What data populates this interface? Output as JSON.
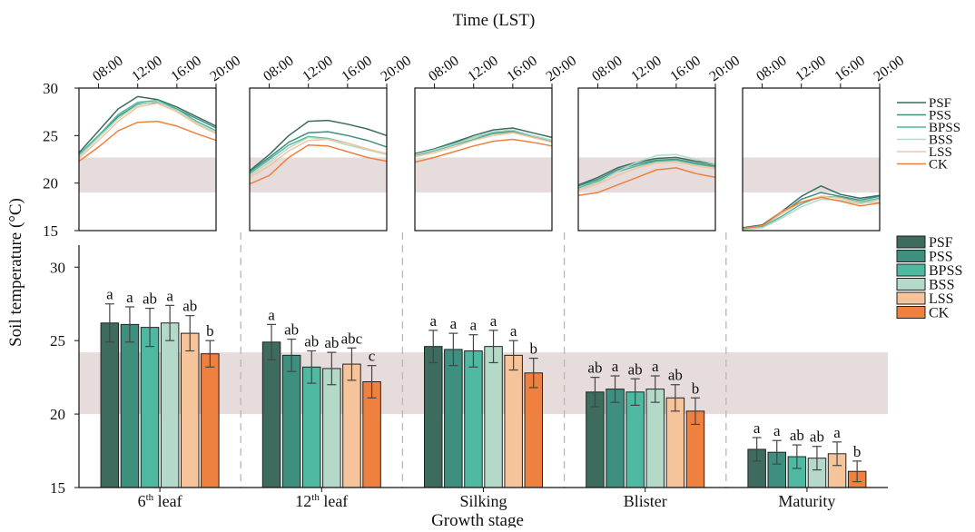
{
  "figure": {
    "top_xlabel": "Time (LST)",
    "ylabel": "Soil temperature (°C)",
    "bottom_xlabel": "Growth stage"
  },
  "colors": {
    "PSF": "#3d6b5e",
    "PSS": "#3f8f7f",
    "BPSS": "#4fb8a0",
    "BSS": "#b4d9c8",
    "LSS": "#f5c49a",
    "CK": "#ee8040",
    "band": "#e6dcdc"
  },
  "chart_data": [
    {
      "type": "line",
      "panel": "diurnal",
      "xlabel": "Time (LST)",
      "ylabel": "Soil temperature (°C)",
      "x_ticks": [
        "08:00",
        "12:00",
        "16:00",
        "20:00"
      ],
      "x_hours": [
        6,
        8,
        10,
        12,
        14,
        16,
        18,
        20
      ],
      "y_ticks": [
        15,
        20,
        25,
        30
      ],
      "ylim": [
        15,
        30
      ],
      "band": [
        19,
        22.7
      ],
      "legend": [
        "PSF",
        "PSS",
        "BPSS",
        "BSS",
        "LSS",
        "CK"
      ],
      "legend_position": "right",
      "facets": [
        {
          "stage": "6th leaf",
          "series": [
            {
              "name": "PSF",
              "values": [
                23.2,
                25.5,
                27.8,
                29.1,
                28.8,
                28.0,
                27.0,
                26.0
              ]
            },
            {
              "name": "PSS",
              "values": [
                23.0,
                25.0,
                27.0,
                28.3,
                28.5,
                27.8,
                26.8,
                25.8
              ]
            },
            {
              "name": "BPSS",
              "values": [
                23.0,
                25.0,
                27.2,
                28.5,
                28.7,
                27.8,
                26.5,
                25.5
              ]
            },
            {
              "name": "BSS",
              "values": [
                22.8,
                24.8,
                26.8,
                28.2,
                28.6,
                27.6,
                26.3,
                25.3
              ]
            },
            {
              "name": "LSS",
              "values": [
                22.6,
                24.5,
                26.5,
                28.0,
                28.4,
                27.5,
                26.2,
                25.2
              ]
            },
            {
              "name": "CK",
              "values": [
                22.3,
                23.8,
                25.5,
                26.4,
                26.5,
                26.0,
                25.2,
                24.5
              ]
            }
          ]
        },
        {
          "stage": "12th leaf",
          "series": [
            {
              "name": "PSF",
              "values": [
                21.3,
                23.0,
                25.0,
                26.5,
                26.6,
                26.2,
                25.7,
                25.0
              ]
            },
            {
              "name": "PSS",
              "values": [
                21.2,
                22.7,
                24.3,
                25.3,
                25.4,
                25.0,
                24.5,
                23.8
              ]
            },
            {
              "name": "BPSS",
              "values": [
                21.0,
                22.5,
                24.0,
                24.9,
                24.7,
                24.2,
                23.6,
                23.0
              ]
            },
            {
              "name": "BSS",
              "values": [
                20.8,
                22.2,
                23.7,
                24.8,
                24.6,
                24.0,
                23.5,
                23.0
              ]
            },
            {
              "name": "LSS",
              "values": [
                20.6,
                21.8,
                23.4,
                24.5,
                24.6,
                24.2,
                23.6,
                23.1
              ]
            },
            {
              "name": "CK",
              "values": [
                19.9,
                20.8,
                22.7,
                24.0,
                23.9,
                23.3,
                22.7,
                22.3
              ]
            }
          ]
        },
        {
          "stage": "Silking",
          "series": [
            {
              "name": "PSF",
              "values": [
                23.1,
                23.6,
                24.3,
                25.0,
                25.6,
                25.8,
                25.3,
                24.8
              ]
            },
            {
              "name": "PSS",
              "values": [
                23.0,
                23.5,
                24.2,
                24.8,
                25.3,
                25.5,
                25.0,
                24.5
              ]
            },
            {
              "name": "BPSS",
              "values": [
                22.9,
                23.4,
                24.0,
                24.6,
                25.2,
                25.4,
                24.9,
                24.4
              ]
            },
            {
              "name": "BSS",
              "values": [
                23.0,
                23.5,
                24.1,
                24.8,
                25.4,
                25.6,
                25.0,
                24.5
              ]
            },
            {
              "name": "LSS",
              "values": [
                22.8,
                23.2,
                23.8,
                24.5,
                25.0,
                25.3,
                24.8,
                24.3
              ]
            },
            {
              "name": "CK",
              "values": [
                22.2,
                22.7,
                23.3,
                23.9,
                24.4,
                24.6,
                24.3,
                23.9
              ]
            }
          ]
        },
        {
          "stage": "Blister",
          "series": [
            {
              "name": "PSF",
              "values": [
                19.8,
                20.6,
                21.6,
                22.2,
                22.6,
                22.7,
                22.3,
                22.0
              ]
            },
            {
              "name": "PSS",
              "values": [
                19.7,
                20.4,
                21.4,
                22.0,
                22.4,
                22.5,
                22.1,
                21.8
              ]
            },
            {
              "name": "BPSS",
              "values": [
                19.5,
                20.2,
                21.2,
                21.8,
                22.3,
                22.4,
                22.0,
                21.7
              ]
            },
            {
              "name": "BSS",
              "values": [
                19.3,
                20.0,
                21.2,
                22.2,
                22.9,
                23.0,
                22.5,
                22.0
              ]
            },
            {
              "name": "LSS",
              "values": [
                19.2,
                19.9,
                20.8,
                21.6,
                22.1,
                22.2,
                21.8,
                21.5
              ]
            },
            {
              "name": "CK",
              "values": [
                18.7,
                19.0,
                19.8,
                20.6,
                21.4,
                21.6,
                21.0,
                20.6
              ]
            }
          ]
        },
        {
          "stage": "Maturity",
          "series": [
            {
              "name": "PSF",
              "values": [
                15.3,
                15.6,
                17.0,
                18.6,
                19.7,
                18.8,
                18.4,
                18.7
              ]
            },
            {
              "name": "PSS",
              "values": [
                15.2,
                15.5,
                16.8,
                18.3,
                19.0,
                18.6,
                18.2,
                18.6
              ]
            },
            {
              "name": "BPSS",
              "values": [
                15.2,
                15.4,
                16.5,
                17.8,
                18.6,
                18.5,
                18.0,
                18.4
              ]
            },
            {
              "name": "BSS",
              "values": [
                15.1,
                15.3,
                16.3,
                17.5,
                18.3,
                18.2,
                17.8,
                18.3
              ]
            },
            {
              "name": "LSS",
              "values": [
                15.2,
                15.5,
                16.8,
                18.0,
                18.6,
                18.4,
                17.9,
                18.0
              ]
            },
            {
              "name": "CK",
              "values": [
                15.2,
                15.5,
                17.0,
                18.0,
                18.5,
                18.1,
                17.6,
                17.9
              ]
            }
          ]
        }
      ]
    },
    {
      "type": "bar",
      "panel": "stage_means",
      "xlabel": "Growth stage",
      "ylabel": "Soil temperature (°C)",
      "categories": [
        "6th leaf",
        "12th leaf",
        "Silking",
        "Blister",
        "Maturity"
      ],
      "y_ticks": [
        15,
        20,
        25,
        30
      ],
      "ylim": [
        15,
        31.5
      ],
      "band": [
        20,
        24.2
      ],
      "legend": [
        "PSF",
        "PSS",
        "BPSS",
        "BSS",
        "LSS",
        "CK"
      ],
      "legend_position": "right",
      "series": [
        {
          "name": "PSF",
          "values": [
            26.2,
            24.9,
            24.6,
            21.5,
            17.6
          ],
          "errors": [
            1.3,
            1.2,
            1.1,
            1.0,
            0.8
          ],
          "letters": [
            "a",
            "a",
            "a",
            "ab",
            "a"
          ]
        },
        {
          "name": "PSS",
          "values": [
            26.1,
            24.0,
            24.4,
            21.7,
            17.4
          ],
          "errors": [
            1.2,
            1.1,
            1.1,
            0.9,
            0.8
          ],
          "letters": [
            "a",
            "ab",
            "a",
            "a",
            "a"
          ]
        },
        {
          "name": "BPSS",
          "values": [
            25.9,
            23.2,
            24.3,
            21.5,
            17.1
          ],
          "errors": [
            1.3,
            1.1,
            1.1,
            0.9,
            0.8
          ],
          "letters": [
            "ab",
            "ab",
            "a",
            "ab",
            "ab"
          ]
        },
        {
          "name": "BSS",
          "values": [
            26.2,
            23.1,
            24.6,
            21.7,
            17.0
          ],
          "errors": [
            1.2,
            1.1,
            1.1,
            0.9,
            0.8
          ],
          "letters": [
            "a",
            "ab",
            "a",
            "a",
            "ab"
          ]
        },
        {
          "name": "LSS",
          "values": [
            25.5,
            23.4,
            24.0,
            21.1,
            17.3
          ],
          "errors": [
            1.2,
            1.1,
            1.0,
            0.9,
            0.8
          ],
          "letters": [
            "ab",
            "abc",
            "a",
            "ab",
            "a"
          ]
        },
        {
          "name": "CK",
          "values": [
            24.1,
            22.2,
            22.8,
            20.2,
            16.1
          ],
          "errors": [
            0.9,
            1.1,
            1.0,
            0.9,
            0.7
          ],
          "letters": [
            "b",
            "c",
            "b",
            "b",
            "b"
          ]
        }
      ]
    }
  ]
}
